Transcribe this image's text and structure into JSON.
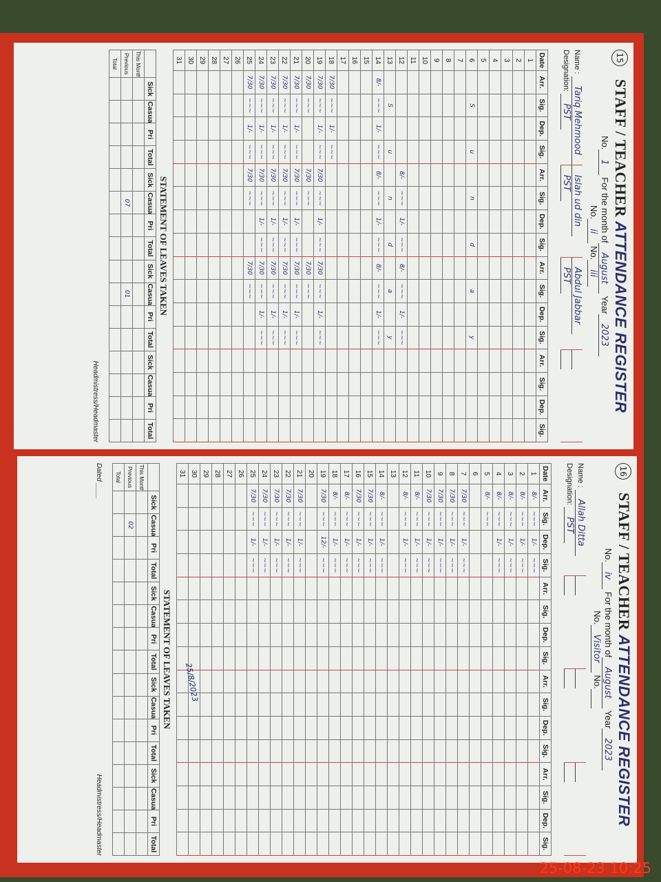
{
  "timestamp": "25-08-23  10:25",
  "labels": {
    "title_a": "STAFF / TEACHER",
    "title_b": "ATTENDANCE REGISTER",
    "for_month": "For the month of",
    "year": "Year",
    "no": "No.",
    "name": "Name :",
    "designation": "Designation:",
    "date": "Date",
    "arr": "Arr.",
    "sig": "Sig.",
    "dep": "Dep.",
    "statement": "STATEMENT OF LEAVES TAKEN",
    "sick": "Sick",
    "casual": "Casual",
    "pri": "Pri",
    "total": "Total",
    "this_month": "This Month",
    "previous": "Previous",
    "total_row": "Total",
    "headmaster": "Headmistress/Headmaster",
    "dated": "Dated"
  },
  "pages": [
    {
      "page_no": "15",
      "month": "August",
      "year": "2023",
      "month_no": "ii",
      "month_no2": "iii",
      "groups": [
        {
          "no": "1",
          "name": "Tariq Mehmood",
          "designation": "PST",
          "arrivals": {
            "14": "8/-",
            "18": "7/30",
            "19": "7/30",
            "20": "7/30",
            "21": "7/30",
            "22": "7/30",
            "23": "7/30",
            "24": "7/30",
            "25": "7/30"
          },
          "departures": {
            "14": "1/-",
            "18": "1/-",
            "19": "1/-",
            "21": "1/-",
            "22": "1/-",
            "23": "1/-",
            "24": "1/-",
            "25": "1/-"
          }
        },
        {
          "no": "ii",
          "name": "Islah ud din",
          "designation": "PST",
          "arrivals": {
            "12": "8/-",
            "14": "8/-",
            "19": "7/30",
            "20": "7/30",
            "21": "7/30",
            "22": "7/30",
            "23": "7/30",
            "24": "7/30",
            "25": "7/30"
          },
          "departures": {
            "12": "1/-",
            "14": "1/-",
            "19": "1/-",
            "21": "1/-",
            "22": "1/-",
            "23": "1/-",
            "24": "1/-"
          }
        },
        {
          "no": "iii",
          "name": "Abdul Jabbar",
          "designation": "PST",
          "arrivals": {
            "12": "8/-",
            "14": "8/-",
            "19": "7/30",
            "20": "7/30",
            "21": "7/30",
            "22": "7/30",
            "23": "7/30",
            "24": "7/30",
            "25": "7/30"
          },
          "departures": {
            "12": "1/-",
            "14": "1/-",
            "19": "1/-",
            "21": "1/-",
            "22": "1/-",
            "23": "1/-",
            "24": "1/-"
          }
        },
        {
          "no": "",
          "name": "",
          "designation": "",
          "arrivals": {},
          "departures": {}
        }
      ],
      "sunday_rows": {
        "6": "Sunday",
        "13": "Sunday"
      },
      "leaves": {
        "previous": [
          "",
          "",
          "",
          "",
          "",
          "07",
          "",
          "",
          "",
          "01",
          "",
          "",
          "",
          "",
          "",
          ""
        ]
      }
    },
    {
      "page_no": "16",
      "month": "August",
      "year": "2023",
      "month_no": "Visitor",
      "month_no2": "",
      "groups": [
        {
          "no": "iv",
          "name": "Allah Ditta",
          "designation": "PST",
          "arrivals": {
            "1": "8/-",
            "2": "8/-",
            "3": "8/-",
            "4": "8/-",
            "5": "8/-",
            "7": "7/30",
            "8": "7/30",
            "9": "7/30",
            "10": "7/30",
            "11": "8/-",
            "12": "8/-",
            "14": "8/-",
            "15": "7/30",
            "16": "7/30",
            "17": "8/-",
            "18": "8/-",
            "19": "7/30",
            "21": "7/30",
            "22": "7/30",
            "23": "7/30",
            "24": "7/30",
            "25": "7/30"
          },
          "departures": {
            "1": "1/-",
            "2": "1/-",
            "3": "1/-",
            "4": "1/-",
            "7": "1/-",
            "8": "1/-",
            "9": "1/-",
            "10": "1/-",
            "11": "1/-",
            "12": "1/-",
            "14": "1/-",
            "15": "1/-",
            "16": "1/-",
            "17": "1/-",
            "18": "1/-",
            "19": "12/-",
            "21": "1/-",
            "22": "1/-",
            "23": "1/-",
            "24": "1/-",
            "25": "1/-"
          }
        },
        {
          "no": "",
          "name": "",
          "designation": "",
          "arrivals": {},
          "departures": {}
        },
        {
          "no": "",
          "name": "",
          "designation": "",
          "arrivals": {},
          "departures": {}
        },
        {
          "no": "",
          "name": "",
          "designation": "",
          "arrivals": {},
          "departures": {}
        }
      ],
      "sunday_rows": {},
      "leaves": {
        "previous": [
          "",
          "02",
          "",
          "",
          "",
          "",
          "",
          "",
          "",
          "",
          "",
          "",
          "",
          "",
          "",
          ""
        ]
      },
      "visitor_date": "25/8/2023"
    }
  ]
}
